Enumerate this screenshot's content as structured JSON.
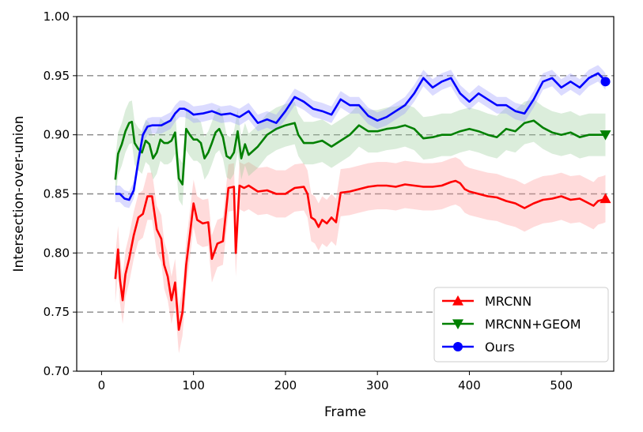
{
  "chart_data": {
    "type": "line",
    "title": "",
    "xlabel": "Frame",
    "ylabel": "Intersection-over-union",
    "xlim": [
      -27,
      557
    ],
    "ylim": [
      0.7,
      1.0
    ],
    "xticks": [
      0,
      100,
      200,
      300,
      400,
      500
    ],
    "yticks": [
      0.7,
      0.75,
      0.8,
      0.85,
      0.9,
      0.95,
      1.0
    ],
    "xtick_labels": [
      "0",
      "100",
      "200",
      "300",
      "400",
      "500"
    ],
    "ytick_labels": [
      "0.70",
      "0.75",
      "0.80",
      "0.85",
      "0.90",
      "0.95",
      "1.00"
    ],
    "grid": "horizontal dashed at y ticks",
    "legend": {
      "position": "lower-right"
    },
    "series": [
      {
        "name": "MRCNN",
        "color": "#ff0000",
        "marker": "triangle-up",
        "x": [
          15,
          18,
          20,
          23,
          26,
          30,
          35,
          40,
          45,
          50,
          55,
          60,
          65,
          68,
          72,
          76,
          80,
          84,
          88,
          92,
          96,
          100,
          104,
          110,
          116,
          120,
          126,
          132,
          138,
          144,
          146,
          150,
          155,
          160,
          170,
          180,
          190,
          200,
          210,
          220,
          224,
          228,
          232,
          236,
          240,
          245,
          250,
          255,
          260,
          270,
          280,
          290,
          300,
          310,
          320,
          330,
          340,
          350,
          360,
          370,
          380,
          385,
          390,
          395,
          400,
          410,
          420,
          430,
          440,
          450,
          460,
          470,
          480,
          490,
          500,
          510,
          520,
          530,
          535,
          540,
          545,
          548
        ],
        "values": [
          0.778,
          0.803,
          0.778,
          0.76,
          0.782,
          0.795,
          0.815,
          0.83,
          0.833,
          0.848,
          0.848,
          0.82,
          0.812,
          0.79,
          0.78,
          0.76,
          0.775,
          0.735,
          0.75,
          0.79,
          0.815,
          0.842,
          0.828,
          0.825,
          0.826,
          0.795,
          0.808,
          0.81,
          0.855,
          0.856,
          0.8,
          0.857,
          0.855,
          0.857,
          0.852,
          0.853,
          0.85,
          0.85,
          0.855,
          0.856,
          0.85,
          0.83,
          0.828,
          0.822,
          0.828,
          0.825,
          0.83,
          0.826,
          0.851,
          0.852,
          0.854,
          0.856,
          0.857,
          0.857,
          0.856,
          0.858,
          0.857,
          0.856,
          0.856,
          0.857,
          0.86,
          0.861,
          0.859,
          0.854,
          0.852,
          0.85,
          0.848,
          0.847,
          0.844,
          0.842,
          0.838,
          0.842,
          0.845,
          0.846,
          0.848,
          0.845,
          0.846,
          0.842,
          0.84,
          0.844,
          0.845,
          0.846
        ]
      },
      {
        "name": "MRCNN+GEOM",
        "color": "#008000",
        "marker": "triangle-down",
        "x": [
          15,
          18,
          22,
          26,
          30,
          33,
          36,
          40,
          44,
          48,
          52,
          56,
          60,
          64,
          68,
          72,
          76,
          80,
          84,
          88,
          92,
          96,
          100,
          104,
          108,
          112,
          116,
          120,
          124,
          128,
          132,
          136,
          140,
          144,
          148,
          152,
          156,
          160,
          170,
          180,
          190,
          200,
          210,
          214,
          220,
          230,
          240,
          250,
          260,
          270,
          280,
          290,
          300,
          310,
          320,
          330,
          340,
          350,
          360,
          370,
          380,
          390,
          400,
          410,
          420,
          430,
          440,
          450,
          460,
          470,
          480,
          490,
          500,
          510,
          520,
          530,
          540,
          548
        ],
        "values": [
          0.862,
          0.884,
          0.892,
          0.903,
          0.91,
          0.911,
          0.893,
          0.888,
          0.885,
          0.895,
          0.892,
          0.88,
          0.885,
          0.896,
          0.893,
          0.893,
          0.895,
          0.902,
          0.863,
          0.858,
          0.905,
          0.9,
          0.896,
          0.896,
          0.893,
          0.88,
          0.885,
          0.893,
          0.902,
          0.905,
          0.898,
          0.882,
          0.88,
          0.885,
          0.903,
          0.88,
          0.892,
          0.883,
          0.89,
          0.9,
          0.905,
          0.908,
          0.91,
          0.9,
          0.893,
          0.893,
          0.895,
          0.89,
          0.895,
          0.9,
          0.908,
          0.903,
          0.903,
          0.905,
          0.906,
          0.908,
          0.905,
          0.897,
          0.898,
          0.9,
          0.9,
          0.903,
          0.905,
          0.903,
          0.9,
          0.898,
          0.905,
          0.903,
          0.91,
          0.912,
          0.906,
          0.902,
          0.9,
          0.902,
          0.898,
          0.9,
          0.9,
          0.9
        ]
      },
      {
        "name": "Ours",
        "color": "#0000ff",
        "marker": "circle",
        "x": [
          15,
          20,
          25,
          30,
          35,
          40,
          45,
          50,
          55,
          60,
          65,
          70,
          75,
          80,
          85,
          90,
          95,
          100,
          110,
          120,
          130,
          140,
          150,
          160,
          170,
          180,
          190,
          200,
          210,
          220,
          230,
          240,
          250,
          260,
          270,
          280,
          290,
          300,
          310,
          320,
          330,
          340,
          350,
          360,
          370,
          380,
          390,
          400,
          410,
          420,
          430,
          440,
          450,
          460,
          470,
          480,
          490,
          500,
          510,
          520,
          530,
          540,
          545,
          548
        ],
        "values": [
          0.85,
          0.85,
          0.846,
          0.845,
          0.853,
          0.878,
          0.9,
          0.907,
          0.908,
          0.908,
          0.908,
          0.91,
          0.912,
          0.918,
          0.922,
          0.922,
          0.92,
          0.917,
          0.918,
          0.92,
          0.917,
          0.918,
          0.915,
          0.92,
          0.91,
          0.913,
          0.91,
          0.92,
          0.932,
          0.928,
          0.922,
          0.92,
          0.917,
          0.93,
          0.925,
          0.925,
          0.916,
          0.912,
          0.915,
          0.92,
          0.925,
          0.935,
          0.948,
          0.94,
          0.945,
          0.948,
          0.935,
          0.928,
          0.935,
          0.93,
          0.925,
          0.925,
          0.92,
          0.918,
          0.93,
          0.945,
          0.948,
          0.94,
          0.945,
          0.94,
          0.948,
          0.952,
          0.948,
          0.945
        ]
      }
    ]
  }
}
